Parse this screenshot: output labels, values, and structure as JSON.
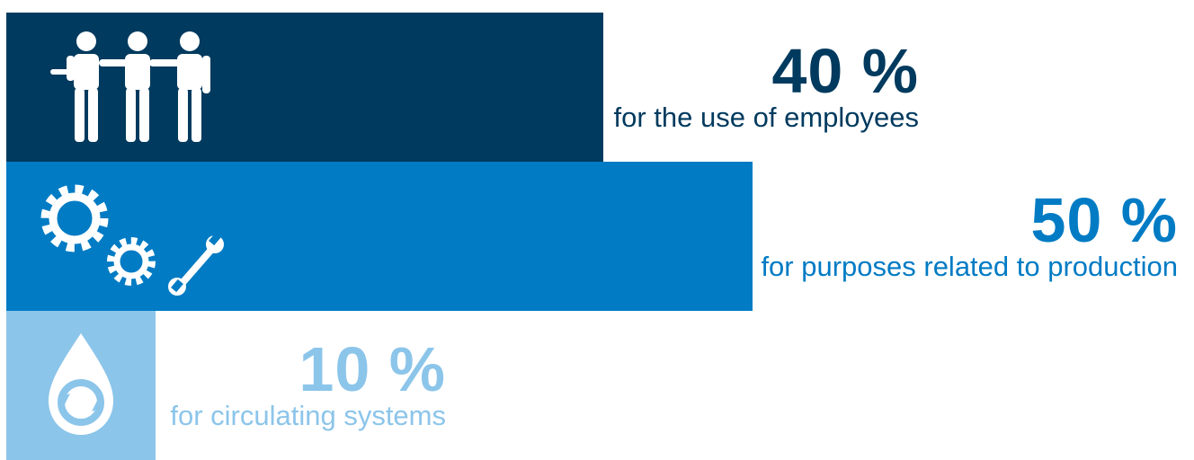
{
  "chart_data": {
    "type": "bar",
    "orientation": "horizontal",
    "title": "",
    "xlabel": "",
    "ylabel": "",
    "xlim": [
      0,
      50
    ],
    "grid": false,
    "legend": "none",
    "unit": "%",
    "categories": [
      "for the use of employees",
      "for purposes related to production",
      "for circulating systems"
    ],
    "values": [
      40,
      50,
      10
    ],
    "value_labels": [
      "40 %",
      "50 %",
      "10 %"
    ],
    "colors": [
      "#003a5e",
      "#007bc4",
      "#8cc5ea"
    ],
    "icons": [
      "employees-icon",
      "gears-wrench-icon",
      "water-drop-recycle-icon"
    ]
  }
}
